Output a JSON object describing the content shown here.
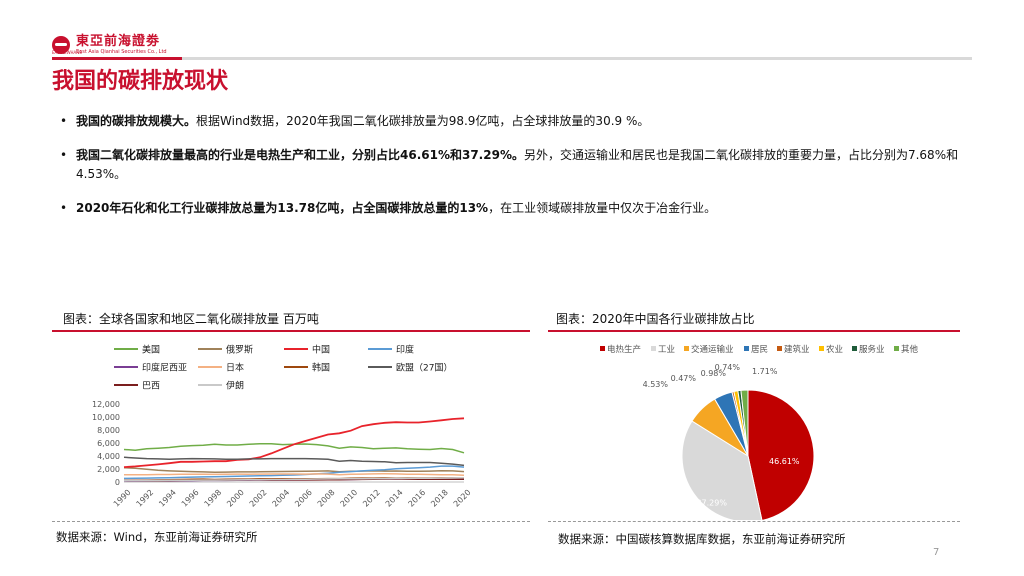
{
  "brand": {
    "name_cn": "東亞前海證劵",
    "name_en": "East Asia Qianhai Securities Co., Ltd",
    "tag": "EAS NEWHANS"
  },
  "title": "我国的碳排放现状",
  "bullets": [
    {
      "bold": "我国的碳排放规模大。",
      "text": "根据Wind数据，2020年我国二氧化碳排放量为98.9亿吨，占全球排放量的30.9 %。"
    },
    {
      "bold": "我国二氧化碳排放量最高的行业是电热生产和工业，分别占比46.61%和37.29%。",
      "text": "另外，交通运输业和居民也是我国二氧化碳排放的重要力量，占比分别为7.68%和4.53%。"
    },
    {
      "bold": "2020年石化和化工行业碳排放总量为13.78亿吨，占全国碳排放总量的13%",
      "text": "，在工业领域碳排放量中仅次于冶金行业。"
    }
  ],
  "left_caption": "图表：全球各国家和地区二氧化碳排放量 百万吨",
  "right_caption": "图表：2020年中国各行业碳排放占比",
  "left_source": "数据来源：Wind，东亚前海证券研究所",
  "right_source": "数据来源：中国碳核算数据库数据，东亚前海证券研究所",
  "page_number": "7",
  "chart_data": [
    {
      "type": "line",
      "title": "",
      "ylim": [
        0,
        12000
      ],
      "y_ticks": [
        "0",
        "2,000",
        "4,000",
        "6,000",
        "8,000",
        "10,000",
        "12,000"
      ],
      "x_ticks": [
        "1990",
        "1992",
        "1994",
        "1996",
        "1998",
        "2000",
        "2002",
        "2004",
        "2006",
        "2008",
        "2010",
        "2012",
        "2014",
        "2016",
        "2018",
        "2020"
      ],
      "x_start": 1990,
      "series": [
        {
          "name": "美国",
          "color": "#70ad47",
          "values": [
            5000,
            4900,
            5100,
            5200,
            5300,
            5500,
            5600,
            5650,
            5800,
            5700,
            5700,
            5800,
            5900,
            5900,
            5750,
            5800,
            5850,
            5750,
            5550,
            5200,
            5400,
            5300,
            5100,
            5200,
            5250,
            5100,
            5050,
            5000,
            5150,
            5000,
            4500
          ]
        },
        {
          "name": "俄罗斯",
          "color": "#a0825a",
          "values": [
            2200,
            2100,
            1950,
            1800,
            1700,
            1650,
            1600,
            1550,
            1500,
            1520,
            1550,
            1560,
            1570,
            1600,
            1620,
            1630,
            1660,
            1680,
            1700,
            1580,
            1650,
            1680,
            1700,
            1680,
            1690,
            1650,
            1650,
            1680,
            1720,
            1700,
            1600
          ]
        },
        {
          "name": "中国",
          "color": "#e8232b",
          "values": [
            2300,
            2400,
            2550,
            2700,
            2900,
            3100,
            3100,
            3150,
            3200,
            3200,
            3400,
            3500,
            3800,
            4400,
            5100,
            5800,
            6300,
            6800,
            7300,
            7500,
            7900,
            8600,
            8900,
            9100,
            9200,
            9150,
            9150,
            9300,
            9500,
            9700,
            9800
          ]
        },
        {
          "name": "印度",
          "color": "#5b9bd5",
          "values": [
            550,
            580,
            600,
            630,
            660,
            700,
            750,
            780,
            820,
            850,
            900,
            920,
            950,
            980,
            1030,
            1080,
            1150,
            1250,
            1350,
            1500,
            1600,
            1700,
            1800,
            1900,
            2050,
            2100,
            2200,
            2300,
            2450,
            2450,
            2300
          ]
        },
        {
          "name": "印度尼西亚",
          "color": "#7a3e94",
          "values": [
            150,
            160,
            170,
            180,
            190,
            210,
            220,
            240,
            250,
            240,
            260,
            280,
            290,
            300,
            310,
            320,
            330,
            340,
            360,
            370,
            390,
            420,
            450,
            460,
            470,
            480,
            500,
            520,
            560,
            600,
            580
          ]
        },
        {
          "name": "日本",
          "color": "#f4b183",
          "values": [
            1100,
            1110,
            1120,
            1150,
            1160,
            1180,
            1200,
            1200,
            1170,
            1200,
            1210,
            1200,
            1220,
            1230,
            1230,
            1230,
            1220,
            1250,
            1210,
            1130,
            1180,
            1220,
            1250,
            1270,
            1240,
            1200,
            1180,
            1160,
            1130,
            1100,
            1030
          ]
        },
        {
          "name": "韩国",
          "color": "#9e480e",
          "values": [
            240,
            260,
            290,
            320,
            350,
            380,
            410,
            440,
            380,
            420,
            440,
            450,
            470,
            480,
            490,
            500,
            500,
            510,
            520,
            520,
            570,
            600,
            600,
            610,
            600,
            610,
            610,
            620,
            630,
            610,
            580
          ]
        },
        {
          "name": "欧盟（27国）",
          "color": "#5a5a5a",
          "values": [
            3800,
            3700,
            3600,
            3550,
            3500,
            3550,
            3600,
            3580,
            3550,
            3500,
            3500,
            3550,
            3550,
            3600,
            3600,
            3600,
            3600,
            3550,
            3500,
            3200,
            3300,
            3200,
            3150,
            3100,
            2950,
            3000,
            3000,
            3000,
            2900,
            2750,
            2550
          ]
        },
        {
          "name": "巴西",
          "color": "#7b1e1e",
          "values": [
            200,
            210,
            210,
            220,
            230,
            250,
            260,
            280,
            290,
            300,
            310,
            310,
            310,
            300,
            310,
            320,
            320,
            330,
            350,
            340,
            380,
            400,
            420,
            450,
            470,
            440,
            420,
            430,
            430,
            430,
            410
          ]
        },
        {
          "name": "伊朗",
          "color": "#c9c9c9",
          "values": [
            200,
            220,
            230,
            250,
            260,
            270,
            280,
            290,
            300,
            310,
            320,
            340,
            350,
            370,
            390,
            410,
            430,
            460,
            470,
            490,
            500,
            510,
            520,
            530,
            560,
            560,
            570,
            590,
            600,
            620,
            650
          ]
        }
      ]
    },
    {
      "type": "pie",
      "title": "",
      "legend_position": "top",
      "slices": [
        {
          "name": "电热生产",
          "value": 46.61,
          "label": "46.61%",
          "color": "#c00000"
        },
        {
          "name": "工业",
          "value": 37.29,
          "label": "37.29%",
          "color": "#d9d9d9"
        },
        {
          "name": "交通运输业",
          "value": 7.68,
          "label": "",
          "color": "#f5a623"
        },
        {
          "name": "居民",
          "value": 4.53,
          "label": "4.53%",
          "color": "#2e75b6"
        },
        {
          "name": "建筑业",
          "value": 0.47,
          "label": "0.47%",
          "color": "#c55a11"
        },
        {
          "name": "农业",
          "value": 0.98,
          "label": "0.98%",
          "color": "#ffc000"
        },
        {
          "name": "服务业",
          "value": 0.74,
          "label": "0.74%",
          "color": "#1f5c3a"
        },
        {
          "name": "其他",
          "value": 1.71,
          "label": "1.71%",
          "color": "#70ad47"
        }
      ]
    }
  ]
}
